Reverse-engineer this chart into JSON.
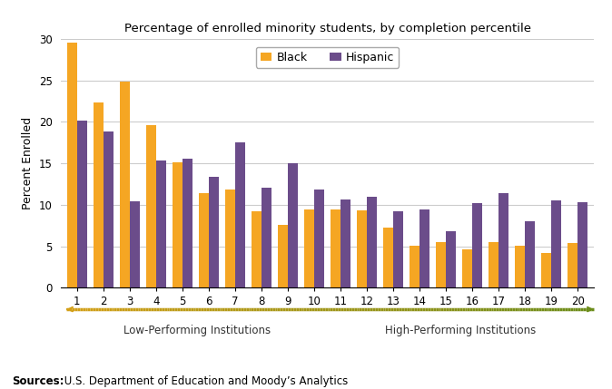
{
  "title": "Percentage of enrolled minority students, by completion percentile",
  "ylabel": "Percent Enrolled",
  "categories": [
    1,
    2,
    3,
    4,
    5,
    6,
    7,
    8,
    9,
    10,
    11,
    12,
    13,
    14,
    15,
    16,
    17,
    18,
    19,
    20
  ],
  "black_values": [
    29.5,
    22.3,
    24.9,
    19.6,
    15.1,
    11.4,
    11.9,
    9.2,
    7.6,
    9.4,
    9.5,
    9.3,
    7.3,
    5.1,
    5.5,
    4.6,
    5.5,
    5.1,
    4.2,
    5.4
  ],
  "hispanic_values": [
    20.2,
    18.8,
    10.4,
    15.4,
    15.6,
    13.4,
    17.5,
    12.1,
    15.0,
    11.8,
    10.7,
    11.0,
    9.2,
    9.5,
    6.8,
    10.2,
    11.4,
    8.0,
    10.5,
    10.3
  ],
  "black_color": "#F5A623",
  "hispanic_color": "#6B4C8A",
  "ylim": [
    0,
    30
  ],
  "yticks": [
    0,
    5,
    10,
    15,
    20,
    25,
    30
  ],
  "source_bold": "Sources:",
  "source_text": " U.S. Department of Education and Moody’s Analytics",
  "low_performing_label": "Low-Performing Institutions",
  "high_performing_label": "High-Performing Institutions",
  "background_color": "#FFFFFF",
  "grid_color": "#CCCCCC",
  "arrow_color_left": "#D4A017",
  "arrow_color_right": "#6B8C1A"
}
